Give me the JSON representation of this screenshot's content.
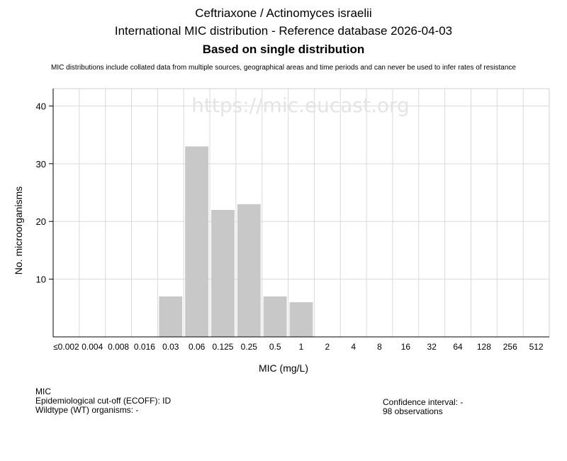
{
  "header": {
    "title": "Ceftriaxone / Actinomyces israelii",
    "subtitle": "International MIC distribution - Reference database 2026-04-03",
    "subtitle2": "Based on single distribution",
    "disclaimer": "MIC distributions include collated data from multiple sources, geographical areas and time periods and can never be used to infer rates of resistance"
  },
  "watermark": "https://mic.eucast.org",
  "chart_data": {
    "type": "bar",
    "categories": [
      "≤0.002",
      "0.004",
      "0.008",
      "0.016",
      "0.03",
      "0.06",
      "0.125",
      "0.25",
      "0.5",
      "1",
      "2",
      "4",
      "8",
      "16",
      "32",
      "64",
      "128",
      "256",
      "512"
    ],
    "values": [
      0,
      0,
      0,
      0,
      7,
      33,
      22,
      23,
      7,
      6,
      0,
      0,
      0,
      0,
      0,
      0,
      0,
      0,
      0
    ],
    "xlabel": "MIC (mg/L)",
    "ylabel": "No. microorganisms",
    "ylim": [
      0,
      43
    ],
    "yticks": [
      10,
      20,
      30,
      40
    ],
    "grid": true,
    "bar_color": "#c8c8c8"
  },
  "info": {
    "mic_label": "MIC",
    "ecoff_line": "Epidemiological cut-off (ECOFF): ID",
    "wt_line": "Wildtype (WT) organisms:  -",
    "ci_line": "Confidence interval: -",
    "observations_line": "98 observations"
  }
}
